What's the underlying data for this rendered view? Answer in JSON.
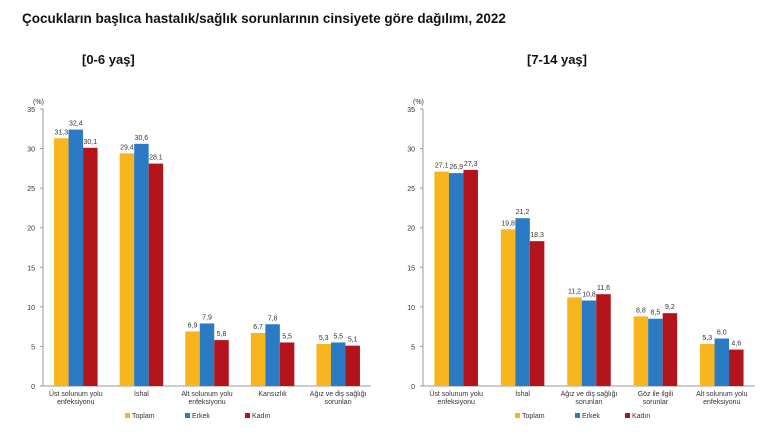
{
  "title": "Çocukların başlıca hastalık/sağlık sorunlarının cinsiyete göre dağılımı, 2022",
  "chart_data": [
    {
      "type": "bar",
      "title": "[0-6 yaş]",
      "ylabel": "(%)",
      "ylim": [
        0,
        35
      ],
      "yticks": [
        "0",
        "5",
        "10",
        "15",
        "20",
        "25",
        "30",
        "35"
      ],
      "grid": false,
      "legend": "bottom",
      "categories": [
        [
          "Üst solunum yolu",
          "enfeksiyonu"
        ],
        [
          "İshal"
        ],
        [
          "Alt solunum yolu",
          "enfeksiyonu"
        ],
        [
          "Kansızlık"
        ],
        [
          "Ağız ve diş sağlığı",
          "sorunları"
        ]
      ],
      "series": [
        {
          "name": "Toplam",
          "color": "#f9b51e",
          "values": [
            31.3,
            29.4,
            6.9,
            6.7,
            5.3
          ],
          "labels": [
            "31,3",
            "29,4",
            "6,9",
            "6,7",
            "5,3"
          ]
        },
        {
          "name": "Erkek",
          "color": "#2a7bc4",
          "values": [
            32.4,
            30.6,
            7.9,
            7.8,
            5.5
          ],
          "labels": [
            "32,4",
            "30,6",
            "7,9",
            "7,8",
            "5,5"
          ]
        },
        {
          "name": "Kadın",
          "color": "#b3141c",
          "values": [
            30.1,
            28.1,
            5.8,
            5.5,
            5.1
          ],
          "labels": [
            "30,1",
            "28,1",
            "5,8",
            "5,5",
            "5,1"
          ]
        }
      ]
    },
    {
      "type": "bar",
      "title": "[7-14 yaş]",
      "ylabel": "(%)",
      "ylim": [
        0,
        35
      ],
      "yticks": [
        "0",
        "5",
        "10",
        "15",
        "20",
        "25",
        "30",
        "35"
      ],
      "grid": false,
      "legend": "bottom",
      "categories": [
        [
          "Üst solunum yolu",
          "enfeksiyonu"
        ],
        [
          "İshal"
        ],
        [
          "Ağız ve diş sağlığı",
          "sorunları"
        ],
        [
          "Göz ile ilgili",
          "sorunlar"
        ],
        [
          "Alt solunum yolu",
          "enfeksiyonu"
        ]
      ],
      "series": [
        {
          "name": "Toplam",
          "color": "#f9b51e",
          "values": [
            27.1,
            19.8,
            11.2,
            8.8,
            5.3
          ],
          "labels": [
            "27,1",
            "19,8",
            "11,2",
            "8,8",
            "5,3"
          ]
        },
        {
          "name": "Erkek",
          "color": "#2a7bc4",
          "values": [
            26.9,
            21.2,
            10.8,
            8.5,
            6.0
          ],
          "labels": [
            "26,9",
            "21,2",
            "10,8",
            "8,5",
            "6,0"
          ]
        },
        {
          "name": "Kadın",
          "color": "#b3141c",
          "values": [
            27.3,
            18.3,
            11.6,
            9.2,
            4.6
          ],
          "labels": [
            "27,3",
            "18,3",
            "11,6",
            "9,2",
            "4,6"
          ]
        }
      ]
    }
  ]
}
